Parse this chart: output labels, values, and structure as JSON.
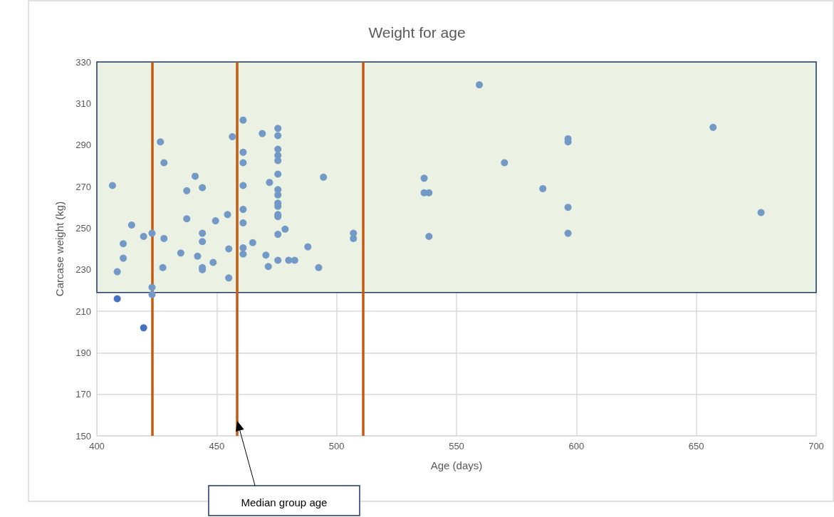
{
  "chart_data": {
    "type": "scatter",
    "title": "Weight for age",
    "xlabel": "Age (days)",
    "ylabel": "Carcase weight (kg)",
    "xlim": [
      400,
      700
    ],
    "xticks": [
      400,
      450,
      500,
      550,
      600,
      650,
      700
    ],
    "ylim": [
      150,
      330
    ],
    "yticks": [
      150,
      170,
      190,
      210,
      230,
      250,
      270,
      290,
      310,
      330
    ],
    "grid": true,
    "marker": "circle",
    "series": [
      {
        "color": "#7399c6",
        "x": [
          406.5,
          408.5,
          411,
          411,
          414.5,
          419.5,
          423,
          423,
          423,
          426.5,
          427.5,
          428,
          428,
          435,
          437.5,
          437.5,
          441,
          442,
          444,
          444,
          444,
          444,
          444,
          448.5,
          449.5,
          454.5,
          455,
          455,
          456.5,
          461,
          461,
          461,
          461,
          461,
          461,
          461,
          461,
          465,
          469,
          470.5,
          471.5,
          472,
          475.5,
          475.5,
          475.5,
          475.5,
          475.5,
          475.5,
          475.5,
          475.5,
          475.5,
          475.5,
          475.5,
          475.5,
          475.5,
          475.5,
          478.5,
          480,
          482.5,
          488,
          492.5,
          494.5,
          507,
          507,
          536.5,
          536.5,
          538.5,
          538.5,
          559.5,
          570,
          586,
          596.5,
          596.5,
          596.5,
          596.5,
          657,
          677
        ],
        "values": [
          270.5,
          229,
          242.5,
          235.5,
          251.5,
          246,
          247.5,
          221.5,
          218,
          291.5,
          231,
          281.5,
          245,
          238,
          268,
          254.5,
          275,
          236.5,
          269.5,
          247.5,
          243.5,
          231,
          230,
          233.5,
          253.5,
          256.5,
          240,
          226,
          294,
          302,
          286.5,
          281.5,
          270.5,
          259,
          252.5,
          240.5,
          237.5,
          243,
          295.5,
          237,
          231.5,
          272,
          298,
          294.5,
          288,
          285,
          282.5,
          276,
          268.5,
          266,
          262,
          260.5,
          256.5,
          255.5,
          247,
          234.5,
          249.5,
          234.5,
          234.5,
          241,
          231,
          274.5,
          247.5,
          245,
          274,
          267,
          267,
          246,
          319,
          281.5,
          269,
          293,
          291.5,
          260,
          247.5,
          298.5,
          257.5
        ]
      },
      {
        "color": "#4472c4",
        "x": [
          408.5,
          419.5
        ],
        "values": [
          216,
          202
        ]
      }
    ],
    "bands": [
      {
        "axis": "y",
        "from": 219,
        "to": 330,
        "color": "#ebf1e3"
      }
    ],
    "ref_lines": [
      {
        "axis": "x",
        "value": 423,
        "color": "#c55a11"
      },
      {
        "axis": "x",
        "value": 458.5,
        "color": "#c55a11",
        "label": "Median group age"
      },
      {
        "axis": "x",
        "value": 511,
        "color": "#c55a11"
      }
    ]
  }
}
